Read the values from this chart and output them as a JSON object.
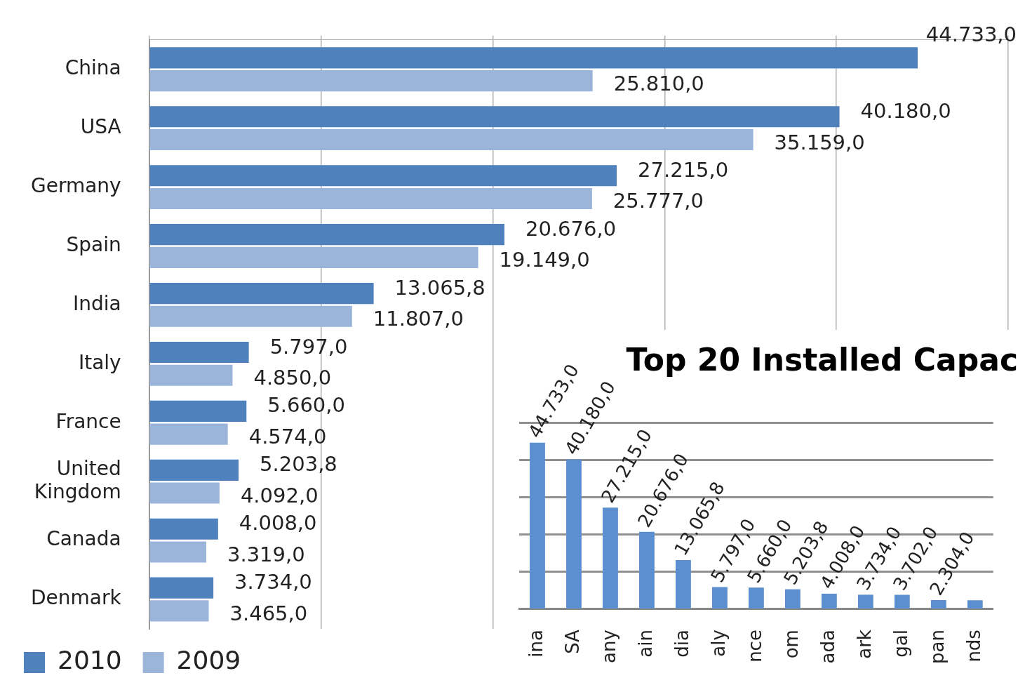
{
  "chart_data": [
    {
      "type": "bar",
      "orientation": "horizontal",
      "categories": [
        "China",
        "USA",
        "Germany",
        "Spain",
        "India",
        "Italy",
        "France",
        "United Kingdom",
        "Canada",
        "Denmark"
      ],
      "series": [
        {
          "name": "2010",
          "color": "#4f81bd",
          "values": [
            44733,
            40180,
            27215,
            20676,
            13065.8,
            5797,
            5660,
            5203.8,
            4008,
            3734
          ],
          "value_labels": [
            "44.733,0",
            "40.180,0",
            "27.215,0",
            "20.676,0",
            "13.065,8",
            "5.797,0",
            "5.660,0",
            "5.203,8",
            "4.008,0",
            "3.734,0"
          ]
        },
        {
          "name": "2009",
          "color": "#9bb4d9",
          "values": [
            25810,
            35159,
            25777,
            19149,
            11807,
            4850,
            4574,
            4092,
            3319,
            3465
          ],
          "value_labels": [
            "25.810,0",
            "35.159,0",
            "25.777,0",
            "19.149,0",
            "11.807,0",
            "4.850,0",
            "4.574,0",
            "4.092,0",
            "3.319,0",
            "3.465,0"
          ]
        }
      ],
      "xlim": [
        0,
        50000
      ],
      "xticks": [
        {
          "value": 0,
          "label": null
        },
        {
          "value": 10000,
          "label": null
        },
        {
          "value": 20000,
          "label": null
        },
        {
          "value": 30000,
          "label": null
        },
        {
          "value": 40000,
          "label": null
        },
        {
          "value": 50000,
          "label": null
        }
      ],
      "grid": "x",
      "legend": "bottom",
      "tick_labels": "y"
    },
    {
      "type": "bar",
      "title": "Top 20 Installed Capac",
      "categories": [
        "ina",
        "SA",
        "any",
        "ain",
        "dia",
        "aly",
        "nce",
        "om",
        "ada",
        "ark",
        "gal",
        "pan",
        "nds"
      ],
      "values": [
        44733,
        40180,
        27215,
        20676,
        13065.8,
        5797,
        5660,
        5203.8,
        4008,
        3734,
        3702,
        2304,
        2230
      ],
      "color": "#5b8fd0",
      "value_labels": [
        "44.733,0",
        "40.180,0",
        "27.215,0",
        "20.676,0",
        "13.065,8",
        "5.797,0",
        "5.660,0",
        "5.203,8",
        "4.008,0",
        "3.734,0",
        "3.702,0",
        "2.304,0",
        null
      ],
      "ylim": [
        0,
        50000
      ],
      "yticks": [
        {
          "value": 10000,
          "label": null
        },
        {
          "value": 20000,
          "label": null
        },
        {
          "value": 30000,
          "label": null
        },
        {
          "value": 40000,
          "label": null
        },
        {
          "value": 50000,
          "label": null
        }
      ],
      "grid": "y",
      "tick_labels": "x"
    }
  ]
}
